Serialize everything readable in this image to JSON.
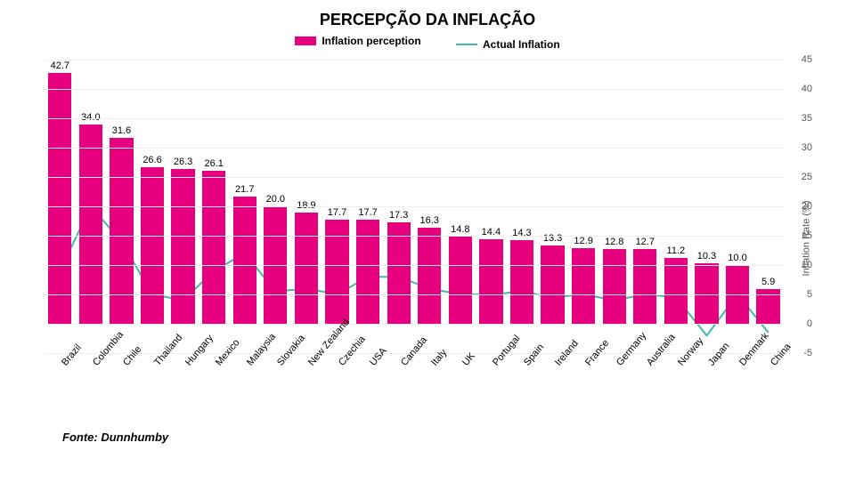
{
  "title": "PERCEPÇÃO DA INFLAÇÃO",
  "title_fontsize": 18,
  "legend": {
    "bar_label": "Inflation perception",
    "line_label": "Actual Inflation"
  },
  "y_axis_label": "Inflation Rate (%)",
  "colors": {
    "bar": "#e6007e",
    "line": "#3fb8af",
    "grid": "#eeeeee",
    "axis": "#bbbbbb",
    "text": "#000000",
    "tick_text": "#555555",
    "background": "#ffffff"
  },
  "chart": {
    "type": "bar+line",
    "ylim": [
      -5,
      45
    ],
    "ytick_step": 5,
    "categories": [
      "Brazil",
      "Colombia",
      "Chile",
      "Thailand",
      "Hungary",
      "Mexico",
      "Malaysia",
      "Slovakia",
      "New Zealand",
      "Czechia",
      "USA",
      "Canada",
      "Italy",
      "UK",
      "Portugal",
      "Spain",
      "Ireland",
      "France",
      "Germany",
      "Australia",
      "Norway",
      "Japan",
      "Denmark",
      "China"
    ],
    "bar_values": [
      42.7,
      34.0,
      31.6,
      26.6,
      26.3,
      26.1,
      21.7,
      20.0,
      18.9,
      17.7,
      17.7,
      17.3,
      16.3,
      14.8,
      14.4,
      14.3,
      13.3,
      12.9,
      12.8,
      12.7,
      11.2,
      10.3,
      10.0,
      5.9
    ],
    "line_values": [
      9.0,
      20.0,
      14.0,
      5.0,
      4.0,
      9.0,
      12.0,
      5.5,
      6.0,
      5.0,
      8.0,
      8.0,
      6.0,
      5.0,
      5.0,
      5.5,
      4.5,
      5.0,
      4.0,
      5.0,
      4.5,
      -2.0,
      5.0,
      -1.5
    ],
    "bar_width_pct": 76,
    "line_width": 2
  },
  "source": "Fonte: Dunnhumby"
}
